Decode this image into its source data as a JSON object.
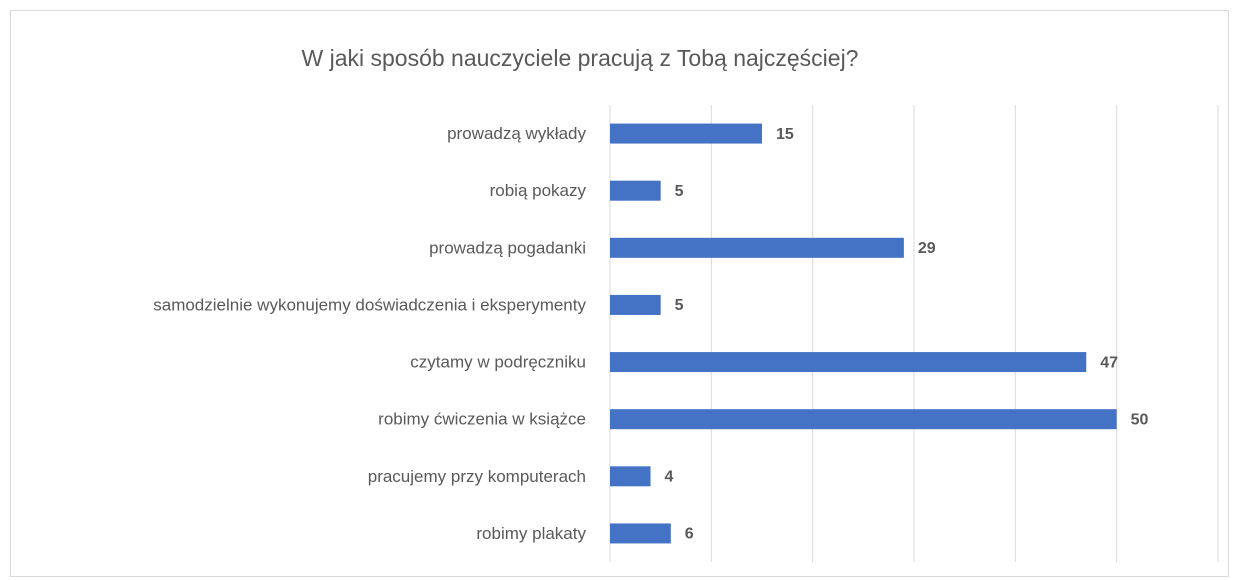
{
  "chart_data": {
    "type": "barh",
    "title": "W jaki sposób nauczyciele pracują z Tobą najczęściej?",
    "categories": [
      "prowadzą wykłady",
      "robią pokazy",
      "prowadzą pogadanki",
      "samodzielnie wykonujemy doświadczenia i eksperymenty",
      "czytamy w podręczniku",
      "robimy ćwiczenia w książce",
      "pracujemy przy komputerach",
      "robimy plakaty"
    ],
    "values": [
      15,
      5,
      29,
      5,
      47,
      50,
      4,
      6
    ],
    "color": "#4472c4",
    "xlim": [
      0,
      60
    ],
    "xticks": [
      0,
      10,
      20,
      30,
      40,
      50,
      60
    ],
    "grid": true
  }
}
